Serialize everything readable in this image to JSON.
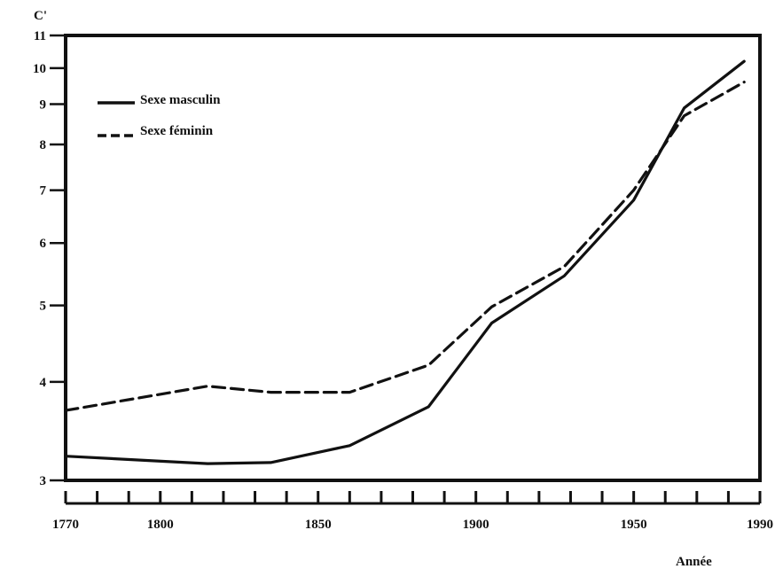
{
  "chart_data": {
    "type": "line",
    "title": "",
    "xlabel": "Année",
    "ylabel": "C'",
    "y_scale": "log",
    "xlim": [
      1770,
      1990
    ],
    "ylim": [
      3,
      11
    ],
    "x_ticks": [
      "1770",
      "1800",
      "1850",
      "1900",
      "1950",
      "1990"
    ],
    "x_tick_values": [
      1770,
      1800,
      1850,
      1900,
      1950,
      1990
    ],
    "x_minor_ticks": [
      1770,
      1780,
      1790,
      1800,
      1810,
      1820,
      1830,
      1840,
      1850,
      1860,
      1870,
      1880,
      1890,
      1900,
      1910,
      1920,
      1930,
      1940,
      1950,
      1960,
      1970,
      1980,
      1990
    ],
    "y_ticks": [
      "3",
      "4",
      "5",
      "6",
      "7",
      "8",
      "9",
      "10",
      "11"
    ],
    "y_tick_values": [
      3,
      4,
      5,
      6,
      7,
      8,
      9,
      10,
      11
    ],
    "grid": false,
    "legend": "top-left",
    "series": [
      {
        "name": "Sexe masculin",
        "style": "solid",
        "x": [
          1770,
          1815,
          1835,
          1860,
          1885,
          1905,
          1928,
          1950,
          1966,
          1985
        ],
        "y": [
          3.22,
          3.15,
          3.16,
          3.32,
          3.72,
          4.75,
          5.45,
          6.8,
          8.9,
          10.2
        ]
      },
      {
        "name": "Sexe féminin",
        "style": "dashed",
        "x": [
          1770,
          1815,
          1835,
          1860,
          1885,
          1905,
          1928,
          1950,
          1966,
          1985
        ],
        "y": [
          3.68,
          3.95,
          3.88,
          3.88,
          4.2,
          4.98,
          5.6,
          7.0,
          8.7,
          9.6
        ]
      }
    ]
  }
}
